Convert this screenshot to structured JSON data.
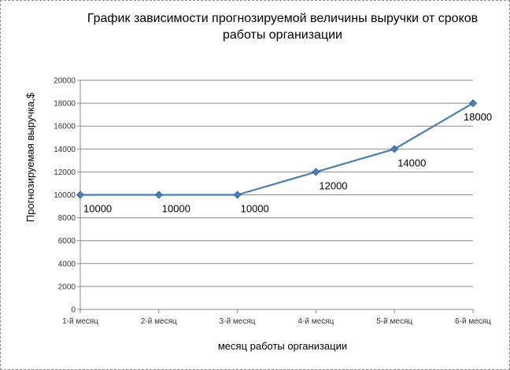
{
  "chart_data": {
    "type": "line",
    "title": [
      "График зависимости прогнозируемой величины выручки от сроков",
      "работы организации"
    ],
    "xlabel": "месяц работы организации",
    "ylabel": "Прогнозируемая выручка,$",
    "categories": [
      "1-й месяц",
      "2-й месяц",
      "3-й месяц",
      "4-й месяц",
      "5-й месяц",
      "6-й месяц"
    ],
    "series": [
      {
        "values": [
          10000,
          10000,
          10000,
          12000,
          14000,
          18000
        ],
        "color": "#4a7ebb"
      }
    ],
    "data_labels": [
      "10000",
      "10000",
      "10000",
      "12000",
      "14000",
      "18000"
    ],
    "ylim": [
      0,
      20000
    ],
    "yticks": [
      0,
      2000,
      4000,
      6000,
      8000,
      10000,
      12000,
      14000,
      16000,
      18000,
      20000
    ],
    "grid": true,
    "legend": "none"
  }
}
